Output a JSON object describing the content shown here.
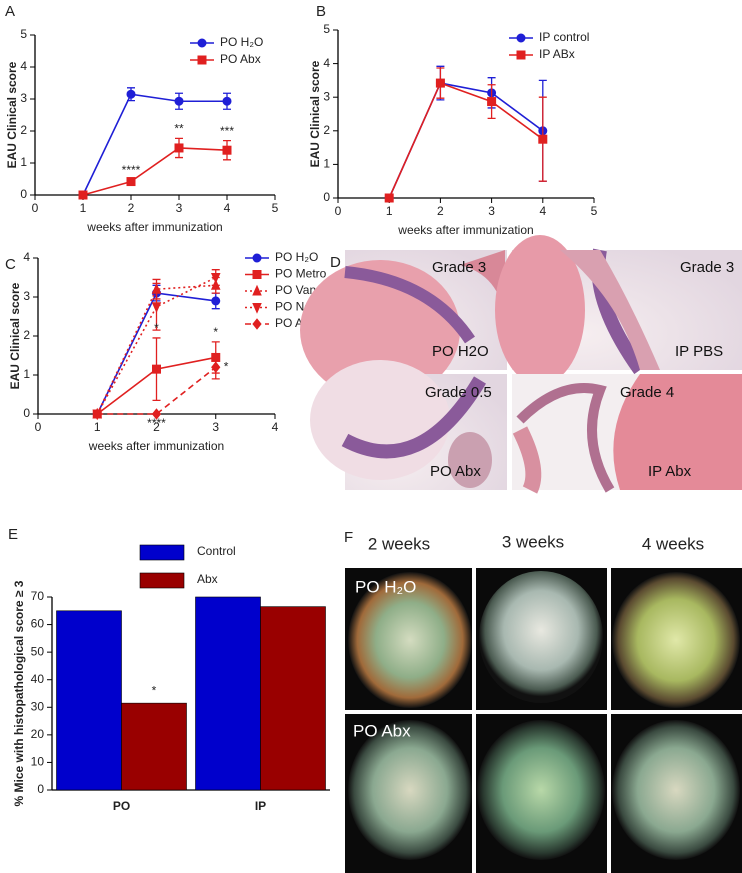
{
  "chart_data": [
    {
      "type": "line",
      "panel_label": "A",
      "xlabel": "weeks after immunization",
      "ylabel": "EAU Clinical score",
      "x": [
        1,
        2,
        3,
        4
      ],
      "xlim": [
        0,
        5
      ],
      "xticks": [
        0,
        1,
        2,
        3,
        4,
        5
      ],
      "ylim": [
        0,
        5
      ],
      "yticks": [
        0,
        1,
        2,
        3,
        4,
        5
      ],
      "legend": "upper right",
      "series": [
        {
          "name": "PO H₂O",
          "color": "#1f1fd6",
          "marker": "circle",
          "dash": "solid",
          "values": [
            0,
            3.15,
            2.93,
            2.93
          ],
          "errors": [
            0,
            0.2,
            0.25,
            0.25
          ]
        },
        {
          "name": "PO Abx",
          "color": "#e02020",
          "marker": "square",
          "dash": "solid",
          "values": [
            0,
            0.42,
            1.47,
            1.4
          ],
          "errors": [
            0,
            0.05,
            0.3,
            0.3
          ]
        }
      ],
      "annotations": [
        {
          "text": "****",
          "x": 2,
          "series": "PO Abx",
          "position": "above"
        },
        {
          "text": "**",
          "x": 3,
          "series": "PO Abx",
          "position": "above"
        },
        {
          "text": "***",
          "x": 4,
          "series": "PO Abx",
          "position": "above"
        }
      ]
    },
    {
      "type": "line",
      "panel_label": "B",
      "xlabel": "weeks after immunization",
      "ylabel": "EAU Clinical score",
      "x": [
        1,
        2,
        3,
        4
      ],
      "xlim": [
        0,
        5
      ],
      "xticks": [
        0,
        1,
        2,
        3,
        4,
        5
      ],
      "ylim": [
        0,
        5
      ],
      "yticks": [
        0,
        1,
        2,
        3,
        4,
        5
      ],
      "legend": "upper right",
      "series": [
        {
          "name": "IP control",
          "color": "#1f1fd6",
          "marker": "circle",
          "dash": "solid",
          "values": [
            0,
            3.42,
            3.13,
            2.0
          ],
          "errors": [
            0,
            0.5,
            0.45,
            1.5
          ]
        },
        {
          "name": "IP ABx",
          "color": "#e02020",
          "marker": "square",
          "dash": "solid",
          "values": [
            0,
            3.42,
            2.87,
            1.75
          ],
          "errors": [
            0,
            0.45,
            0.5,
            1.25
          ]
        }
      ],
      "annotations": []
    },
    {
      "type": "line",
      "panel_label": "C",
      "xlabel": "weeks after immunization",
      "ylabel": "EAU Clinical score",
      "x": [
        1,
        2,
        3
      ],
      "xlim": [
        0,
        4
      ],
      "xticks": [
        0,
        1,
        2,
        3,
        4
      ],
      "ylim": [
        0,
        4
      ],
      "yticks": [
        0,
        1,
        2,
        3,
        4
      ],
      "legend": "right",
      "series": [
        {
          "name": "PO H₂O",
          "color": "#1f1fd6",
          "marker": "circle",
          "dash": "solid",
          "values": [
            0,
            3.1,
            2.9
          ],
          "errors": [
            0,
            0.2,
            0.2
          ]
        },
        {
          "name": "PO Metro",
          "color": "#e02020",
          "marker": "square",
          "dash": "solid",
          "values": [
            0,
            1.15,
            1.45
          ],
          "errors": [
            0,
            0.8,
            0.4
          ]
        },
        {
          "name": "PO Vanco",
          "color": "#e02020",
          "marker": "triangle",
          "dash": "dotted",
          "values": [
            0,
            3.2,
            3.3
          ],
          "errors": [
            0,
            0.25,
            0.2
          ]
        },
        {
          "name": "PO Neo",
          "color": "#e02020",
          "marker": "triangle-down",
          "dash": "dotted",
          "values": [
            0,
            2.75,
            3.5
          ],
          "errors": [
            0,
            0.6,
            0.2
          ]
        },
        {
          "name": "PO Amp",
          "color": "#e02020",
          "marker": "diamond",
          "dash": "dashed",
          "values": [
            0,
            0,
            1.2
          ],
          "errors": [
            0,
            0,
            0.3
          ]
        }
      ],
      "annotations": [
        {
          "text": "*",
          "x": 2,
          "series": "PO Metro",
          "position": "above"
        },
        {
          "text": "****",
          "x": 2,
          "series": "PO Amp",
          "position": "below"
        },
        {
          "text": "*",
          "x": 3,
          "series": "PO Metro",
          "position": "above"
        },
        {
          "text": "*",
          "x": 3,
          "series": "PO Amp",
          "position": "right"
        }
      ]
    },
    {
      "type": "bar",
      "panel_label": "E",
      "ylabel": "% Mice with histopathological score ≥ 3",
      "categories": [
        "PO",
        "IP"
      ],
      "ylim": [
        0,
        70
      ],
      "yticks": [
        0,
        10,
        20,
        30,
        40,
        50,
        60,
        70
      ],
      "legend": "top",
      "series": [
        {
          "name": "Control",
          "color": "#0000cc",
          "values": [
            65,
            70
          ]
        },
        {
          "name": "Abx",
          "color": "#990000",
          "values": [
            31.5,
            66.5
          ]
        }
      ],
      "annotations": [
        {
          "text": "*",
          "x": "PO",
          "series": "Abx",
          "position": "above"
        }
      ]
    }
  ],
  "histology": {
    "panel_label": "D",
    "images": [
      {
        "grade": "Grade 3",
        "group": "PO H2O"
      },
      {
        "grade": "Grade 3",
        "group": "IP PBS"
      },
      {
        "grade": "Grade 0.5",
        "group": "PO Abx"
      },
      {
        "grade": "Grade 4",
        "group": "IP Abx"
      }
    ]
  },
  "fundus": {
    "panel_label": "F",
    "columns": [
      "2 weeks",
      "3 weeks",
      "4 weeks"
    ],
    "rows": [
      "PO H₂O",
      "PO Abx"
    ]
  }
}
